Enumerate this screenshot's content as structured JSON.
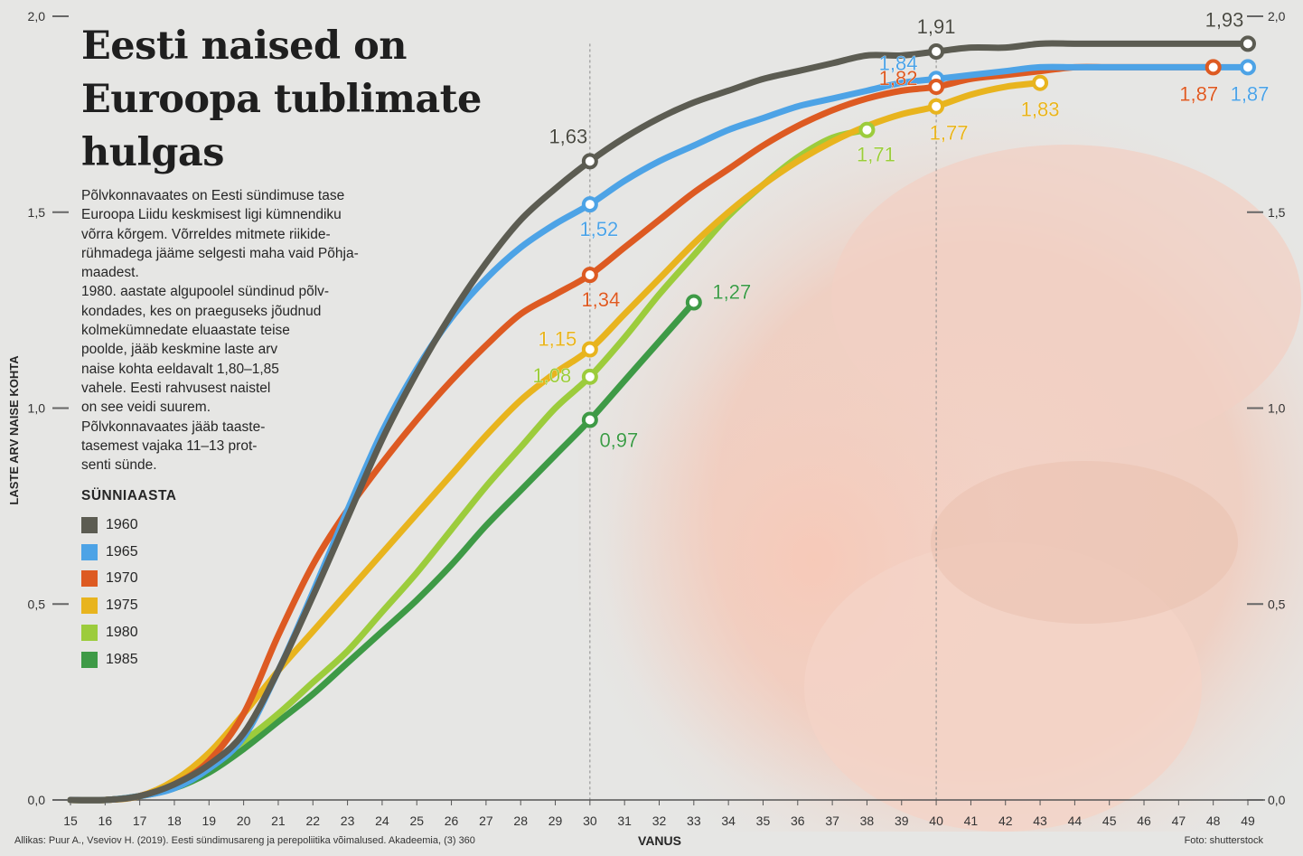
{
  "title_lines": [
    "Eesti naised on",
    "Euroopa tublimate",
    "hulgas"
  ],
  "body_lines": [
    "Põlvkonnavaates on Eesti sündimuse tase",
    "Euroopa Liidu keskmisest ligi kümnendiku",
    "võrra kõrgem. Võrreldes mitmete riikide-",
    "rühmadega jääme selgesti maha vaid Põhja-",
    "maadest.",
    "1980. aastate algupoolel sündinud põlv-",
    "kondades, kes on praeguseks jõudnud",
    "kolmekümnedate eluaastate teise",
    "poolde, jääb keskmine laste arv",
    "naise kohta eeldavalt 1,80–1,85",
    "vahele. Eesti rahvusest naistel",
    "on see veidi suurem.",
    "Põlvkonnavaates jääb taaste-",
    "tasemest vajaka 11–13 prot-",
    "senti sünde."
  ],
  "legend": {
    "title": "SÜNNIAASTA",
    "items": [
      {
        "label": "1960",
        "color": "#5c5c52"
      },
      {
        "label": "1965",
        "color": "#4da3e6"
      },
      {
        "label": "1970",
        "color": "#dd5a22"
      },
      {
        "label": "1975",
        "color": "#e8b41e"
      },
      {
        "label": "1980",
        "color": "#9ccc3c"
      },
      {
        "label": "1985",
        "color": "#3e9a46"
      }
    ]
  },
  "source": "Allikas: Puur A., Vseviov H. (2019). Eesti sündimusareng ja perepoliitika võimalused. Akadeemia, (3) 360",
  "photo_credit": "Foto: shutterstock",
  "chart_data": {
    "type": "line",
    "title": "Eesti naised on Euroopa tublimate hulgas",
    "xlabel": "VANUS",
    "ylabel": "LASTE ARV NAISE KOHTA",
    "xlim": [
      15,
      49
    ],
    "ylim": [
      0,
      2.0
    ],
    "x_ticks": [
      15,
      16,
      17,
      18,
      19,
      20,
      21,
      22,
      23,
      24,
      25,
      26,
      27,
      28,
      29,
      30,
      31,
      32,
      33,
      34,
      35,
      36,
      37,
      38,
      39,
      40,
      41,
      42,
      43,
      44,
      45,
      46,
      47,
      48,
      49
    ],
    "y_ticks": [
      0.0,
      0.5,
      1.0,
      1.5,
      2.0
    ],
    "y_tick_labels": [
      "0,0",
      "0,5",
      "1,0",
      "1,5",
      "2,0"
    ],
    "reference_lines_x": [
      30,
      40
    ],
    "series": [
      {
        "name": "1960",
        "color": "#5c5c52",
        "x": [
          15,
          16,
          17,
          18,
          19,
          20,
          21,
          22,
          23,
          24,
          25,
          26,
          27,
          28,
          29,
          30,
          31,
          32,
          33,
          34,
          35,
          36,
          37,
          38,
          39,
          40,
          41,
          42,
          43,
          44,
          45,
          46,
          47,
          48,
          49
        ],
        "y": [
          0.0,
          0.0,
          0.01,
          0.04,
          0.09,
          0.17,
          0.33,
          0.52,
          0.72,
          0.92,
          1.09,
          1.24,
          1.37,
          1.48,
          1.56,
          1.63,
          1.69,
          1.74,
          1.78,
          1.81,
          1.84,
          1.86,
          1.88,
          1.9,
          1.9,
          1.91,
          1.92,
          1.92,
          1.93,
          1.93,
          1.93,
          1.93,
          1.93,
          1.93,
          1.93
        ],
        "markers": [
          {
            "x": 30,
            "y": 1.63,
            "label": "1,63"
          },
          {
            "x": 40,
            "y": 1.91,
            "label": "1,91"
          },
          {
            "x": 49,
            "y": 1.93,
            "label": "1,93"
          }
        ]
      },
      {
        "name": "1965",
        "color": "#4da3e6",
        "x": [
          15,
          16,
          17,
          18,
          19,
          20,
          21,
          22,
          23,
          24,
          25,
          26,
          27,
          28,
          29,
          30,
          31,
          32,
          33,
          34,
          35,
          36,
          37,
          38,
          39,
          40,
          41,
          42,
          43,
          44,
          45,
          46,
          47,
          48,
          49
        ],
        "y": [
          0.0,
          0.0,
          0.01,
          0.03,
          0.08,
          0.16,
          0.33,
          0.53,
          0.74,
          0.94,
          1.1,
          1.23,
          1.33,
          1.41,
          1.47,
          1.52,
          1.58,
          1.63,
          1.67,
          1.71,
          1.74,
          1.77,
          1.79,
          1.81,
          1.83,
          1.84,
          1.85,
          1.86,
          1.87,
          1.87,
          1.87,
          1.87,
          1.87,
          1.87,
          1.87
        ],
        "markers": [
          {
            "x": 30,
            "y": 1.52,
            "label": "1,52"
          },
          {
            "x": 40,
            "y": 1.84,
            "label": "1,84"
          },
          {
            "x": 49,
            "y": 1.87,
            "label": "1,87"
          }
        ]
      },
      {
        "name": "1970",
        "color": "#dd5a22",
        "x": [
          15,
          16,
          17,
          18,
          19,
          20,
          21,
          22,
          23,
          24,
          25,
          26,
          27,
          28,
          29,
          30,
          31,
          32,
          33,
          34,
          35,
          36,
          37,
          38,
          39,
          40,
          41,
          42,
          43,
          44,
          45,
          46,
          47,
          48
        ],
        "y": [
          0.0,
          0.0,
          0.01,
          0.04,
          0.1,
          0.22,
          0.42,
          0.6,
          0.74,
          0.86,
          0.97,
          1.07,
          1.16,
          1.24,
          1.29,
          1.34,
          1.41,
          1.48,
          1.55,
          1.61,
          1.67,
          1.72,
          1.76,
          1.79,
          1.81,
          1.82,
          1.84,
          1.85,
          1.86,
          1.87,
          1.87,
          1.87,
          1.87,
          1.87
        ],
        "markers": [
          {
            "x": 30,
            "y": 1.34,
            "label": "1,34"
          },
          {
            "x": 40,
            "y": 1.82,
            "label": "1,82"
          },
          {
            "x": 48,
            "y": 1.87,
            "label": "1,87"
          }
        ]
      },
      {
        "name": "1975",
        "color": "#e8b41e",
        "x": [
          15,
          16,
          17,
          18,
          19,
          20,
          21,
          22,
          23,
          24,
          25,
          26,
          27,
          28,
          29,
          30,
          31,
          32,
          33,
          34,
          35,
          36,
          37,
          38,
          39,
          40,
          41,
          42,
          43
        ],
        "y": [
          0.0,
          0.0,
          0.01,
          0.05,
          0.12,
          0.22,
          0.33,
          0.43,
          0.53,
          0.63,
          0.73,
          0.83,
          0.93,
          1.02,
          1.09,
          1.15,
          1.24,
          1.33,
          1.42,
          1.5,
          1.57,
          1.63,
          1.68,
          1.72,
          1.75,
          1.77,
          1.8,
          1.82,
          1.83
        ],
        "markers": [
          {
            "x": 30,
            "y": 1.15,
            "label": "1,15"
          },
          {
            "x": 40,
            "y": 1.77,
            "label": "1,77"
          },
          {
            "x": 43,
            "y": 1.83,
            "label": "1,83"
          }
        ]
      },
      {
        "name": "1980",
        "color": "#9ccc3c",
        "x": [
          15,
          16,
          17,
          18,
          19,
          20,
          21,
          22,
          23,
          24,
          25,
          26,
          27,
          28,
          29,
          30,
          31,
          32,
          33,
          34,
          35,
          36,
          37,
          38
        ],
        "y": [
          0.0,
          0.0,
          0.01,
          0.04,
          0.09,
          0.15,
          0.22,
          0.3,
          0.38,
          0.48,
          0.58,
          0.69,
          0.8,
          0.9,
          1.0,
          1.08,
          1.18,
          1.29,
          1.39,
          1.49,
          1.57,
          1.64,
          1.69,
          1.71
        ],
        "markers": [
          {
            "x": 30,
            "y": 1.08,
            "label": "1,08"
          },
          {
            "x": 38,
            "y": 1.71,
            "label": "1,71"
          }
        ]
      },
      {
        "name": "1985",
        "color": "#3e9a46",
        "x": [
          15,
          16,
          17,
          18,
          19,
          20,
          21,
          22,
          23,
          24,
          25,
          26,
          27,
          28,
          29,
          30,
          31,
          32,
          33
        ],
        "y": [
          0.0,
          0.0,
          0.01,
          0.03,
          0.07,
          0.13,
          0.2,
          0.27,
          0.35,
          0.43,
          0.51,
          0.6,
          0.7,
          0.79,
          0.88,
          0.97,
          1.07,
          1.17,
          1.27
        ],
        "markers": [
          {
            "x": 30,
            "y": 0.97,
            "label": "0,97"
          },
          {
            "x": 33,
            "y": 1.27,
            "label": "1,27"
          }
        ]
      }
    ]
  }
}
